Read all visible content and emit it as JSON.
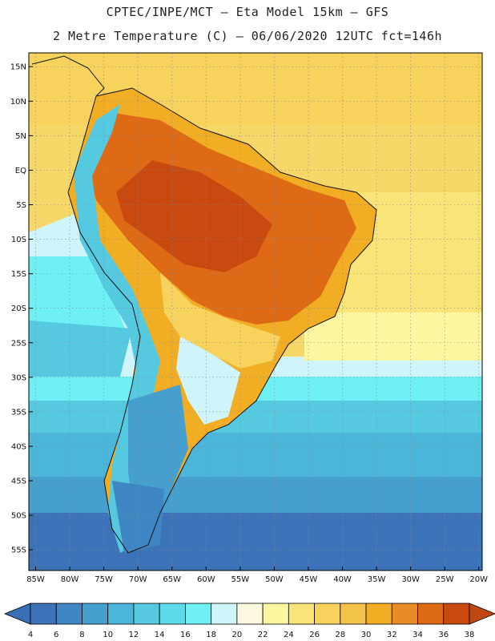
{
  "header": {
    "line1": "CPTEC/INPE/MCT –  Eta Model 15km – GFS",
    "line2": "2 Metre Temperature (C) – 06/06/2020 12UTC fct=146h"
  },
  "map": {
    "region": "South America",
    "variable": "2 Metre Temperature",
    "units": "C",
    "lat_labels": [
      "15N",
      "10N",
      "5N",
      "EQ",
      "5S",
      "10S",
      "15S",
      "20S",
      "25S",
      "30S",
      "35S",
      "40S",
      "45S",
      "50S",
      "55S"
    ],
    "lat_values": [
      15,
      10,
      5,
      0,
      -5,
      -10,
      -15,
      -20,
      -25,
      -30,
      -35,
      -40,
      -45,
      -50,
      -55
    ],
    "lon_labels": [
      "85W",
      "80W",
      "75W",
      "70W",
      "65W",
      "60W",
      "55W",
      "50W",
      "45W",
      "40W",
      "35W",
      "30W",
      "25W",
      "20W"
    ],
    "lon_values": [
      -85,
      -80,
      -75,
      -70,
      -65,
      -60,
      -55,
      -50,
      -45,
      -40,
      -35,
      -30,
      -25,
      -20
    ],
    "lon_range": [
      -86,
      -19.5
    ],
    "lat_range": [
      -58,
      17
    ]
  },
  "colorbar": {
    "labels": [
      "4",
      "6",
      "8",
      "10",
      "12",
      "14",
      "16",
      "18",
      "20",
      "22",
      "24",
      "26",
      "28",
      "30",
      "32",
      "34",
      "36",
      "38"
    ],
    "colors": [
      "#3b72b8",
      "#3f86c4",
      "#45a0cf",
      "#4cb6da",
      "#54c9e0",
      "#5edbe8",
      "#6ef0f4",
      "#cff5fa",
      "#fdf9e0",
      "#fdf6a0",
      "#f9e47a",
      "#f7d35e",
      "#f3c24a",
      "#f1ad24",
      "#ea8c26",
      "#de6a16",
      "#c84a10"
    ],
    "under_color": "#3a6fb6",
    "over_color": "#c04810"
  }
}
